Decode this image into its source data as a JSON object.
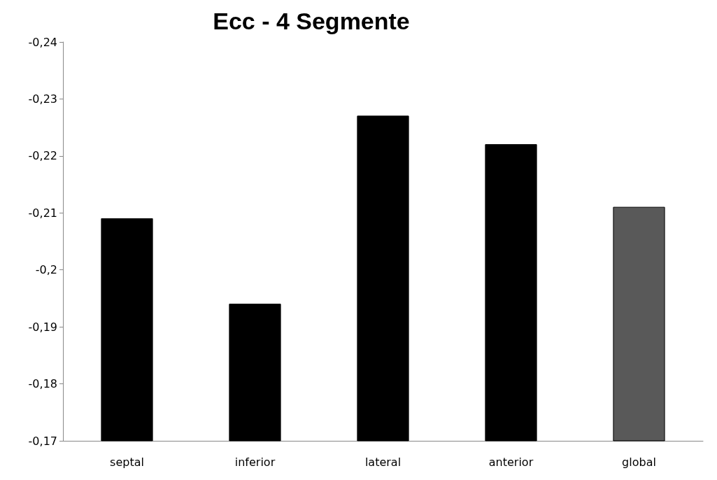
{
  "chart_data": {
    "type": "bar",
    "title": "Ecc - 4 Segmente",
    "categories": [
      "septal",
      "inferior",
      "lateral",
      "anterior",
      "global"
    ],
    "values": [
      -0.209,
      -0.194,
      -0.227,
      -0.222,
      -0.211
    ],
    "colors": [
      "#000000",
      "#000000",
      "#000000",
      "#000000",
      "#595959"
    ],
    "ylim": [
      -0.17,
      -0.24
    ],
    "yticks": [
      {
        "value": -0.17,
        "label": "-0,17"
      },
      {
        "value": -0.18,
        "label": "-0,18"
      },
      {
        "value": -0.19,
        "label": "-0,19"
      },
      {
        "value": -0.2,
        "label": "-0,2"
      },
      {
        "value": -0.21,
        "label": "-0,21"
      },
      {
        "value": -0.22,
        "label": "-0,22"
      },
      {
        "value": -0.23,
        "label": "-0,23"
      },
      {
        "value": -0.24,
        "label": "-0,24"
      }
    ],
    "grid": false
  }
}
